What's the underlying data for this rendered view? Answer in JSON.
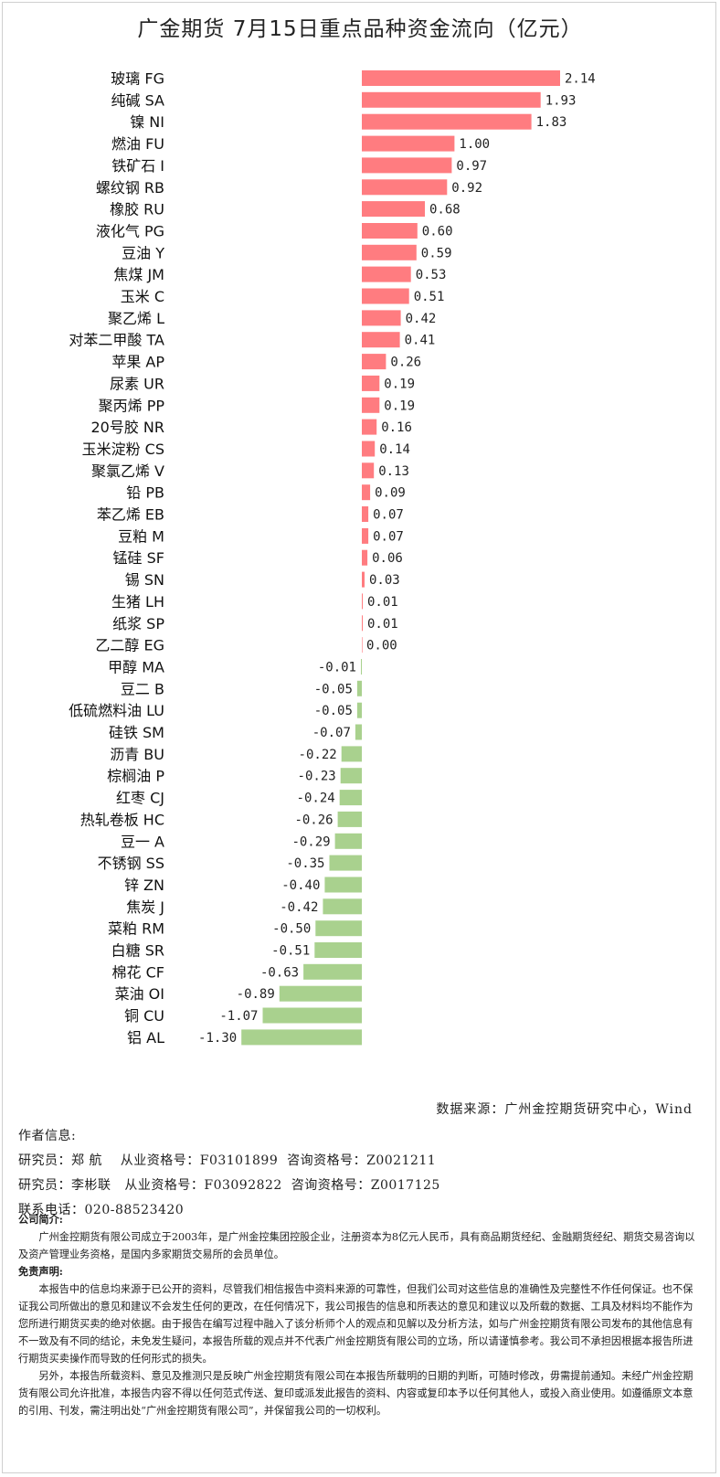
{
  "chart_data": {
    "type": "bar",
    "orientation": "horizontal",
    "title": "广金期货 7月15日重点品种资金流向（亿元）",
    "categories": [
      "玻璃 FG",
      "纯碱 SA",
      "镍 NI",
      "燃油 FU",
      "铁矿石 I",
      "螺纹钢 RB",
      "橡胶 RU",
      "液化气 PG",
      "豆油 Y",
      "焦煤 JM",
      "玉米 C",
      "聚乙烯 L",
      "对苯二甲酸 TA",
      "苹果 AP",
      "尿素 UR",
      "聚丙烯 PP",
      "20号胶 NR",
      "玉米淀粉 CS",
      "聚氯乙烯 V",
      "铅 PB",
      "苯乙烯 EB",
      "豆粕 M",
      "锰硅 SF",
      "锡 SN",
      "生猪 LH",
      "纸浆 SP",
      "乙二醇 EG",
      "甲醇 MA",
      "豆二 B",
      "低硫燃料油 LU",
      "硅铁 SM",
      "沥青 BU",
      "棕榈油 P",
      "红枣 CJ",
      "热轧卷板 HC",
      "豆一 A",
      "不锈钢 SS",
      "锌 ZN",
      "焦炭 J",
      "菜粕 RM",
      "白糖 SR",
      "棉花 CF",
      "菜油 OI",
      "铜 CU",
      "铝 AL"
    ],
    "values": [
      2.14,
      1.93,
      1.83,
      1.0,
      0.97,
      0.92,
      0.68,
      0.6,
      0.59,
      0.53,
      0.51,
      0.42,
      0.41,
      0.26,
      0.19,
      0.19,
      0.16,
      0.14,
      0.13,
      0.09,
      0.07,
      0.07,
      0.06,
      0.03,
      0.01,
      0.01,
      0.0,
      -0.01,
      -0.05,
      -0.05,
      -0.07,
      -0.22,
      -0.23,
      -0.24,
      -0.26,
      -0.29,
      -0.35,
      -0.4,
      -0.42,
      -0.5,
      -0.51,
      -0.63,
      -0.89,
      -1.07,
      -1.3
    ],
    "value_labels": [
      "2.14",
      "1.93",
      "1.83",
      "1.00",
      "0.97",
      "0.92",
      "0.68",
      "0.60",
      "0.59",
      "0.53",
      "0.51",
      "0.42",
      "0.41",
      "0.26",
      "0.19",
      "0.19",
      "0.16",
      "0.14",
      "0.13",
      "0.09",
      "0.07",
      "0.07",
      "0.06",
      "0.03",
      "0.01",
      "0.01",
      "0.00",
      "-0.01",
      "-0.05",
      "-0.05",
      "-0.07",
      "-0.22",
      "-0.23",
      "-0.24",
      "-0.26",
      "-0.29",
      "-0.35",
      "-0.40",
      "-0.42",
      "-0.50",
      "-0.51",
      "-0.63",
      "-0.89",
      "-1.07",
      "-1.30"
    ],
    "colors": {
      "positive": "#ff7c80",
      "negative": "#a9d18e"
    },
    "grid": false,
    "legend": "none"
  },
  "source": "数据来源：广州金控期货研究中心，Wind",
  "author": {
    "heading": "作者信息:",
    "lines": [
      "研究员：郑 航    从业资格号：F03101899  咨询资格号：Z0021211",
      "研究员：李彬联   从业资格号：F03092822  咨询资格号：Z0017125",
      "联系电话：020-88523420"
    ]
  },
  "company": {
    "heading": "公司简介:",
    "text": "广州金控期货有限公司成立于2003年，是广州金控集团控股企业，注册资本为8亿元人民币，具有商品期货经纪、金融期货经纪、期货交易咨询以及资产管理业务资格，是国内多家期货交易所的会员单位。"
  },
  "disclaimer": {
    "heading": "免责声明:",
    "para1": "本报告中的信息均来源于已公开的资料，尽管我们相信报告中资料来源的可靠性，但我们公司对这些信息的准确性及完整性不作任何保证。也不保证我公司所做出的意见和建议不会发生任何的更改，在任何情况下，我公司报告的信息和所表达的意见和建议以及所载的数据、工具及材料均不能作为您所进行期货买卖的绝对依据。由于报告在编写过程中融入了该分析师个人的观点和见解以及分析方法，如与广州金控期货有限公司发布的其他信息有不一致及有不同的结论，未免发生疑问，本报告所载的观点并不代表广州金控期货有限公司的立场，所以请谨慎参考。我公司不承担因根据本报告所进行期货买卖操作而导致的任何形式的损失。",
    "para2": "另外，本报告所载资料、意见及推测只是反映广州金控期货有限公司在本报告所载明的日期的判断，可随时修改，毋需提前通知。未经广州金控期货有限公司允许批准，本报告内容不得以任何范式传送、复印或派发此报告的资料、内容或复印本予以任何其他人，或投入商业使用。如遵循原文本意的引用、刊发，需注明出处“广州金控期货有限公司”，并保留我公司的一切权利。"
  }
}
